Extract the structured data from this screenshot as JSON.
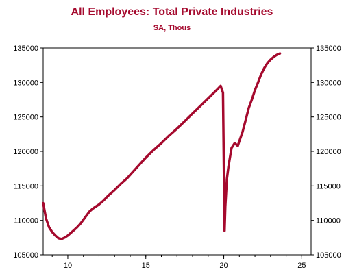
{
  "chart_data": {
    "type": "line",
    "title": "All Employees: Total Private Industries",
    "subtitle": "SA, Thous",
    "xlabel": "",
    "ylabel": "",
    "xlim": [
      8.42,
      25.6
    ],
    "ylim": [
      105000,
      135000
    ],
    "x_ticks": [
      10,
      15,
      20,
      25
    ],
    "x_tick_labels": [
      "10",
      "15",
      "20",
      "25"
    ],
    "y_ticks": [
      105000,
      110000,
      115000,
      120000,
      125000,
      130000,
      135000
    ],
    "y_tick_labels": [
      "105000",
      "110000",
      "115000",
      "120000",
      "125000",
      "130000",
      "135000"
    ],
    "right_axis": true,
    "grid": false,
    "legend": "none",
    "colors": {
      "line": "#a50a2e",
      "title": "#a50a2e",
      "axis": "#000000"
    },
    "series": [
      {
        "x": [
          8.42,
          8.6,
          8.8,
          9.0,
          9.2,
          9.4,
          9.6,
          9.8,
          10.0,
          10.2,
          10.4,
          10.6,
          10.8,
          11.0,
          11.2,
          11.4,
          11.6,
          11.8,
          12.0,
          12.3,
          12.6,
          13.0,
          13.4,
          13.8,
          14.2,
          14.6,
          15.0,
          15.5,
          16.0,
          16.5,
          17.0,
          17.5,
          18.0,
          18.5,
          19.0,
          19.5,
          19.8,
          19.95,
          20.05,
          20.1,
          20.2,
          20.3,
          20.4,
          20.5,
          20.7,
          20.9,
          21.0,
          21.2,
          21.4,
          21.6,
          21.8,
          22.0,
          22.2,
          22.4,
          22.6,
          22.8,
          23.0,
          23.2,
          23.4,
          23.6
        ],
        "values": [
          112500,
          110300,
          109000,
          108300,
          107800,
          107400,
          107300,
          107500,
          107800,
          108200,
          108600,
          109000,
          109500,
          110100,
          110700,
          111300,
          111700,
          112000,
          112300,
          112900,
          113600,
          114400,
          115300,
          116100,
          117100,
          118100,
          119100,
          120200,
          121200,
          122300,
          123300,
          124400,
          125500,
          126600,
          127700,
          128800,
          129500,
          128500,
          108500,
          112000,
          116000,
          117800,
          119200,
          120500,
          121200,
          120800,
          121500,
          122800,
          124500,
          126300,
          127500,
          128900,
          130000,
          131200,
          132100,
          132800,
          133300,
          133700,
          134000,
          134200
        ]
      }
    ]
  }
}
